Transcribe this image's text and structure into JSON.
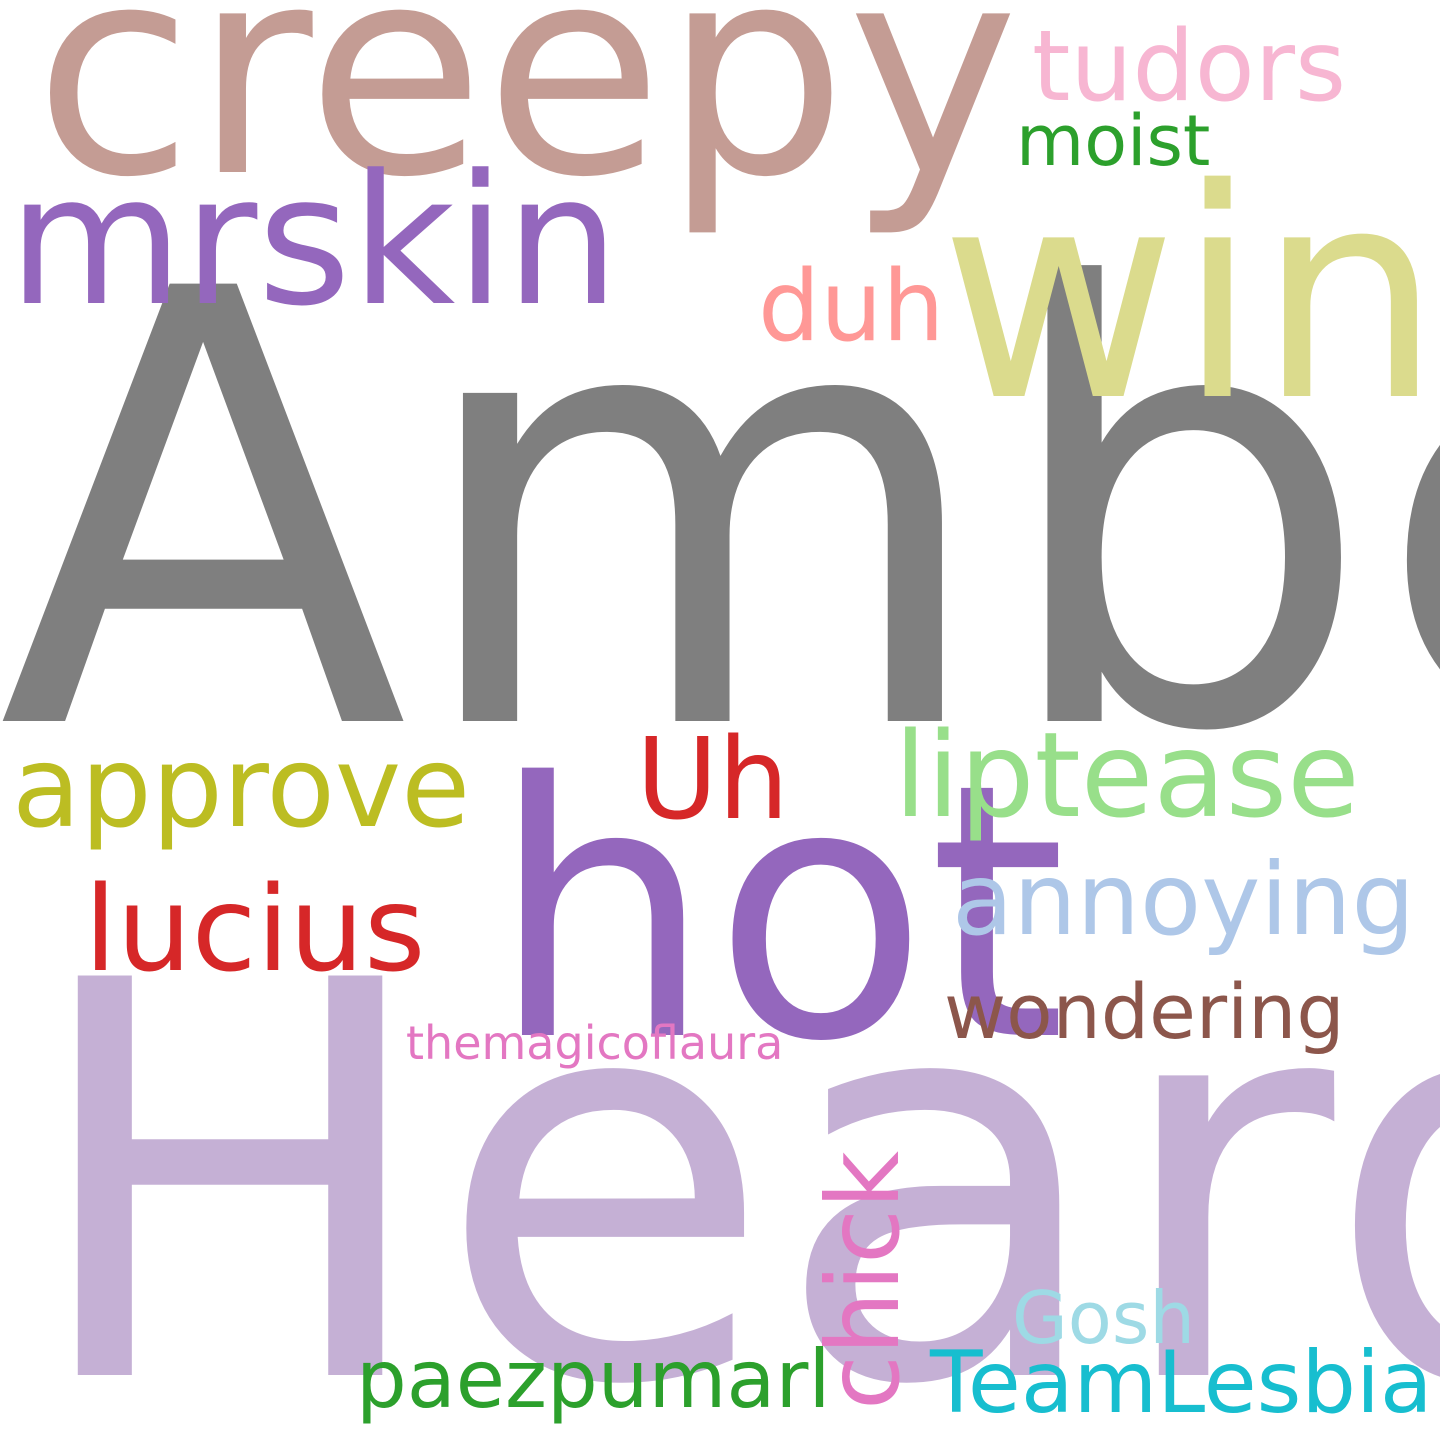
{
  "words": [
    {
      "key": "heard",
      "text": "Heard",
      "color": "#c5b0d5"
    },
    {
      "key": "amber",
      "text": "Amber",
      "color": "#7f7f7f"
    },
    {
      "key": "hot",
      "text": "hot",
      "color": "#9467bd"
    },
    {
      "key": "creepy",
      "text": "creepy",
      "color": "#c49c94"
    },
    {
      "key": "win",
      "text": "win",
      "color": "#dbdb8d"
    },
    {
      "key": "mrskin",
      "text": "mrskin",
      "color": "#9467bd"
    },
    {
      "key": "tudors",
      "text": "tudors",
      "color": "#f7b6d2"
    },
    {
      "key": "moist",
      "text": "moist",
      "color": "#2ca02c"
    },
    {
      "key": "duh",
      "text": "duh",
      "color": "#ff9896"
    },
    {
      "key": "approve",
      "text": "approve",
      "color": "#bcbd22"
    },
    {
      "key": "uh",
      "text": "Uh",
      "color": "#d62728"
    },
    {
      "key": "liptease",
      "text": "liptease",
      "color": "#98df8a"
    },
    {
      "key": "annoying",
      "text": "annoying",
      "color": "#aec7e8"
    },
    {
      "key": "lucius",
      "text": "lucius",
      "color": "#d62728"
    },
    {
      "key": "wondering",
      "text": "wondering",
      "color": "#8c564b"
    },
    {
      "key": "themagicoflaura",
      "text": "themagicoflaura",
      "color": "#e377c2"
    },
    {
      "key": "chick",
      "text": "chick",
      "color": "#e377c2"
    },
    {
      "key": "gosh",
      "text": "Gosh",
      "color": "#9edae5"
    },
    {
      "key": "paezpumarl",
      "text": "paezpumarl",
      "color": "#2ca02c"
    },
    {
      "key": "teamlesbian",
      "text": "TeamLesbian",
      "color": "#17becf"
    }
  ]
}
